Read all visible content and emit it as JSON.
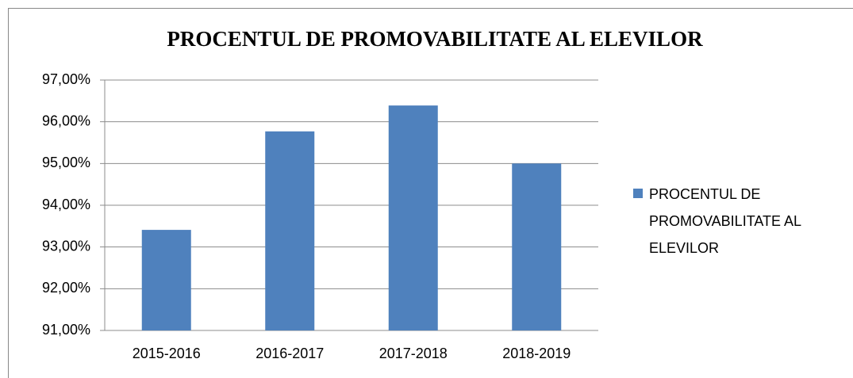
{
  "chart_data": {
    "type": "bar",
    "title": "PROCENTUL DE PROMOVABILITATE AL ELEVILOR",
    "categories": [
      "2015-2016",
      "2016-2017",
      "2017-2018",
      "2018-2019"
    ],
    "series": [
      {
        "name": "PROCENTUL DE PROMOVABILITATE AL ELEVILOR",
        "color": "#4f81bd",
        "values": [
          93.41,
          95.77,
          96.39,
          95.0
        ]
      }
    ],
    "ylim": [
      91,
      97
    ],
    "yticks": [
      {
        "value": 91,
        "label": "91,00%"
      },
      {
        "value": 92,
        "label": "92,00%"
      },
      {
        "value": 93,
        "label": "93,00%"
      },
      {
        "value": 94,
        "label": "94,00%"
      },
      {
        "value": 95,
        "label": "95,00%"
      },
      {
        "value": 96,
        "label": "96,00%"
      },
      {
        "value": 97,
        "label": "97,00%"
      }
    ],
    "grid": true,
    "legend": "right"
  }
}
